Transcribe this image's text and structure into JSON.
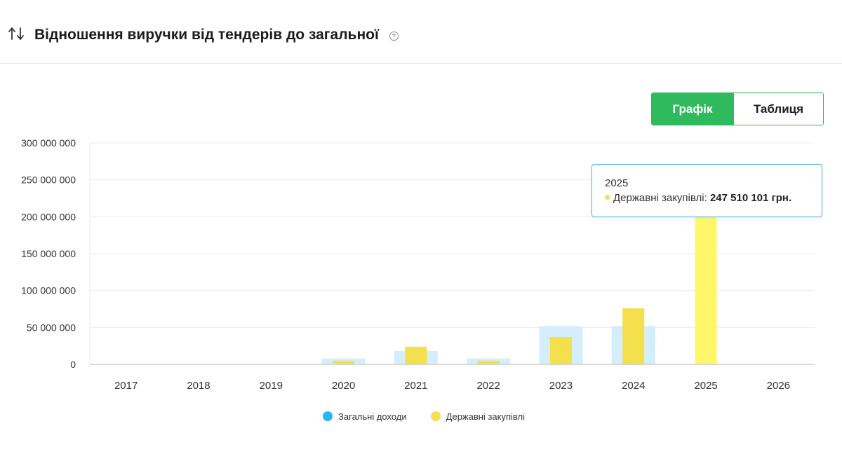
{
  "header": {
    "title": "Відношення виручки від тендерів до загальної",
    "sort_icon": "sort-arrows-icon",
    "help_icon": "question-circle-icon"
  },
  "view_toggle": {
    "chart_label": "Графік",
    "table_label": "Таблиця",
    "active": "chart"
  },
  "colors": {
    "accent_green": "#2fba5d",
    "total_income": "#d4eefb",
    "government_procurement": "#f4df4d",
    "government_procurement_highlight": "#fff76b",
    "legend_total_income": "#29b6f6",
    "legend_government_procurement": "#f7df52"
  },
  "tooltip": {
    "year": "2025",
    "series_label": "Державні закупівлі:",
    "value_text": "247 510 101 грн."
  },
  "chart_data": {
    "type": "bar",
    "categories": [
      "2017",
      "2018",
      "2019",
      "2020",
      "2021",
      "2022",
      "2023",
      "2024",
      "2025",
      "2026"
    ],
    "ylim": [
      0,
      300000000
    ],
    "yticks": [
      0,
      50000000,
      100000000,
      150000000,
      200000000,
      250000000,
      300000000
    ],
    "ytick_labels": [
      "0",
      "50 000 000",
      "100 000 000",
      "150 000 000",
      "200 000 000",
      "250 000 000",
      "300 000 000"
    ],
    "grid": true,
    "legend_position": "bottom",
    "highlighted_category": "2025",
    "series": [
      {
        "name": "Загальні доходи",
        "values": [
          0,
          0,
          0,
          8000000,
          18000000,
          8000000,
          52000000,
          52000000,
          0,
          0
        ]
      },
      {
        "name": "Державні закупівлі",
        "values": [
          0,
          0,
          0,
          5000000,
          24000000,
          5000000,
          37000000,
          76000000,
          247510101,
          0
        ]
      }
    ]
  }
}
